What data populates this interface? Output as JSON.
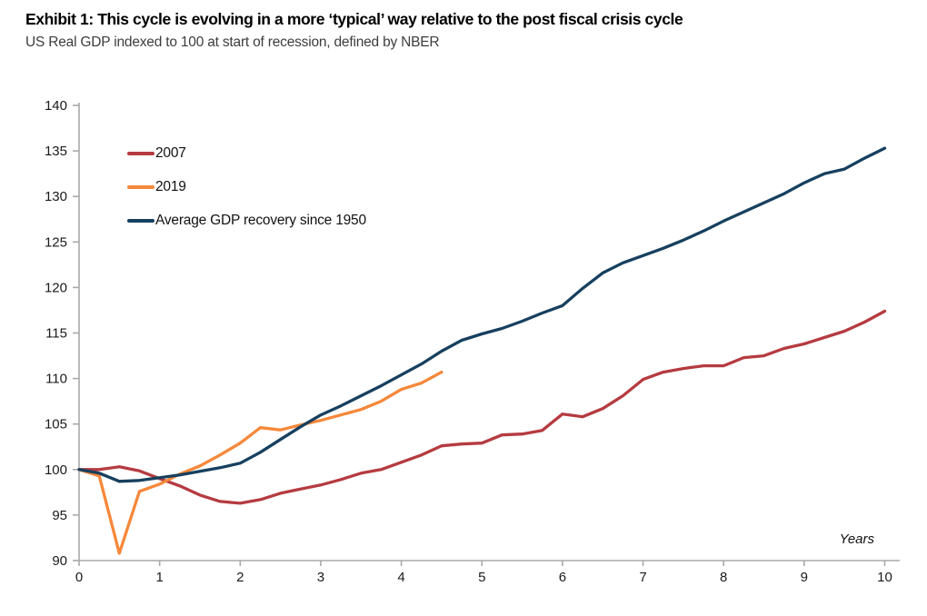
{
  "header": {
    "title": "Exhibit 1: This cycle is evolving in a more ‘typical’ way relative to the post fiscal crisis cycle",
    "subtitle": "US Real GDP indexed to 100 at start of recession, defined by NBER"
  },
  "colors": {
    "series_2007": "#b53b40",
    "series_2019": "#f6883a",
    "series_avg": "#17405f",
    "axis": "#a9a9a9",
    "tick_label": "#1a1a1a"
  },
  "legend": [
    {
      "label": "2007",
      "color": "#b53b40"
    },
    {
      "label": "2019",
      "color": "#f6883a"
    },
    {
      "label": "Average GDP recovery since 1950",
      "color": "#17405f"
    }
  ],
  "chart_data": {
    "type": "line",
    "title": "US Real GDP indexed to 100 at start of recession",
    "xlabel": "Years",
    "ylabel": "",
    "xlim": [
      0,
      10
    ],
    "ylim": [
      90,
      140
    ],
    "x_ticks": [
      0,
      1,
      2,
      3,
      4,
      5,
      6,
      7,
      8,
      9,
      10
    ],
    "y_ticks": [
      90,
      95,
      100,
      105,
      110,
      115,
      120,
      125,
      130,
      135,
      140
    ],
    "grid": false,
    "legend_position": "top-left",
    "x_annotation": "Years",
    "x_step": 0.25,
    "x": [
      0,
      0.25,
      0.5,
      0.75,
      1,
      1.25,
      1.5,
      1.75,
      2,
      2.25,
      2.5,
      2.75,
      3,
      3.25,
      3.5,
      3.75,
      4,
      4.25,
      4.5,
      4.75,
      5,
      5.25,
      5.5,
      5.75,
      6,
      6.25,
      6.5,
      6.75,
      7,
      7.25,
      7.5,
      7.75,
      8,
      8.25,
      8.5,
      8.75,
      9,
      9.25,
      9.5,
      9.75,
      10
    ],
    "series": [
      {
        "name": "2007",
        "color": "#b53b40",
        "values": [
          100.0,
          100.0,
          100.3,
          99.85,
          99.0,
          98.2,
          97.2,
          96.5,
          96.3,
          96.7,
          97.4,
          97.85,
          98.3,
          98.9,
          99.6,
          100.0,
          100.8,
          101.6,
          102.6,
          102.8,
          102.9,
          103.8,
          103.9,
          104.3,
          106.1,
          105.8,
          106.7,
          108.1,
          109.9,
          110.7,
          111.1,
          111.4,
          111.4,
          112.3,
          112.5,
          113.3,
          113.8,
          114.5,
          115.2,
          116.2,
          117.4
        ]
      },
      {
        "name": "2019",
        "color": "#f6883a",
        "values": [
          100.0,
          99.3,
          90.8,
          97.6,
          98.4,
          99.5,
          100.4,
          101.6,
          102.9,
          104.6,
          104.35,
          104.9,
          105.4,
          106.0,
          106.6,
          107.5,
          108.8,
          109.5,
          110.7
        ]
      },
      {
        "name": "Average GDP recovery since 1950",
        "color": "#17405f",
        "values": [
          100.0,
          99.6,
          98.7,
          98.8,
          99.1,
          99.4,
          99.8,
          100.2,
          100.7,
          101.9,
          103.3,
          104.7,
          106.0,
          107.0,
          108.1,
          109.2,
          110.4,
          111.6,
          113.0,
          114.2,
          114.9,
          115.5,
          116.3,
          117.2,
          118.0,
          119.9,
          121.6,
          122.7,
          123.5,
          124.3,
          125.2,
          126.2,
          127.3,
          128.3,
          129.3,
          130.3,
          131.5,
          132.5,
          133.0,
          134.2,
          135.3
        ]
      }
    ]
  }
}
